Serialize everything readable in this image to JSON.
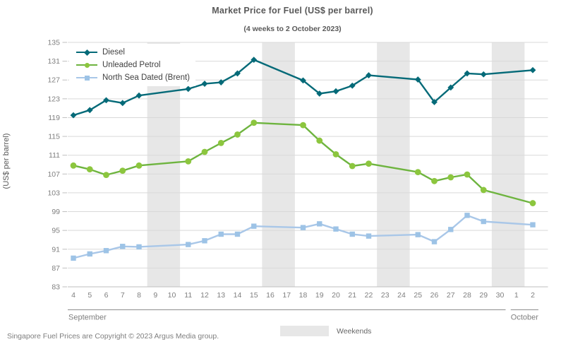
{
  "chart_data": {
    "type": "line",
    "title": "Market Price for Fuel (US$ per barrel)",
    "subtitle": "(4 weeks to 2 October 2023)",
    "ylabel": "(US$ per barrel)",
    "ylim": [
      83,
      135
    ],
    "ytick_step": 4,
    "grid": true,
    "legend_position": "top-left",
    "weekend_color": "#E7E7E7",
    "grid_color": "#D9D9D9",
    "axis_color": "#BFBFBF",
    "tick_label_color": "#7F7F7F",
    "x_categories": [
      "4",
      "5",
      "6",
      "7",
      "8",
      "9",
      "10",
      "11",
      "12",
      "13",
      "14",
      "15",
      "16",
      "17",
      "18",
      "19",
      "20",
      "21",
      "22",
      "23",
      "24",
      "25",
      "26",
      "27",
      "28",
      "29",
      "30",
      "1",
      "2"
    ],
    "month_groups": [
      {
        "label": "September",
        "start": 0,
        "end": 26
      },
      {
        "label": "October",
        "start": 27,
        "end": 28
      }
    ],
    "weekend_bands": [
      [
        5,
        6
      ],
      [
        12,
        13
      ],
      [
        19,
        20
      ],
      [
        26,
        27
      ]
    ],
    "series": [
      {
        "name": "Diesel",
        "color": "#046A78",
        "marker": "diamond",
        "marker_color": "#046A78",
        "values": [
          119.5,
          120.6,
          122.7,
          122.1,
          123.7,
          null,
          null,
          125.1,
          126.2,
          126.5,
          128.4,
          131.3,
          null,
          null,
          126.9,
          124.1,
          124.6,
          125.8,
          128.0,
          null,
          null,
          127.1,
          122.3,
          125.4,
          128.4,
          128.2,
          null,
          null,
          129.1
        ]
      },
      {
        "name": "Unleaded Petrol",
        "color": "#6EB43F",
        "marker": "circle",
        "marker_color": "#8CC63E",
        "values": [
          108.8,
          108.0,
          106.8,
          107.7,
          108.8,
          null,
          null,
          109.7,
          111.7,
          113.6,
          115.4,
          117.9,
          null,
          null,
          117.4,
          114.1,
          111.2,
          108.7,
          109.2,
          null,
          null,
          107.4,
          105.5,
          106.3,
          106.9,
          103.6,
          null,
          null,
          100.8
        ]
      },
      {
        "name": "North Sea Dated (Brent)",
        "color": "#A9C7E8",
        "marker": "square",
        "marker_color": "#9DC3E6",
        "values": [
          89.1,
          90.0,
          90.7,
          91.6,
          91.5,
          null,
          null,
          92.0,
          92.8,
          94.2,
          94.2,
          95.9,
          null,
          null,
          95.6,
          96.4,
          95.3,
          94.2,
          93.8,
          null,
          null,
          94.1,
          92.6,
          95.2,
          98.2,
          96.9,
          null,
          null,
          96.2
        ]
      }
    ]
  },
  "footer": {
    "copyright": "Singapore Fuel Prices are Copyright © 2023 Argus Media group.",
    "weekends_label": "Weekends"
  }
}
